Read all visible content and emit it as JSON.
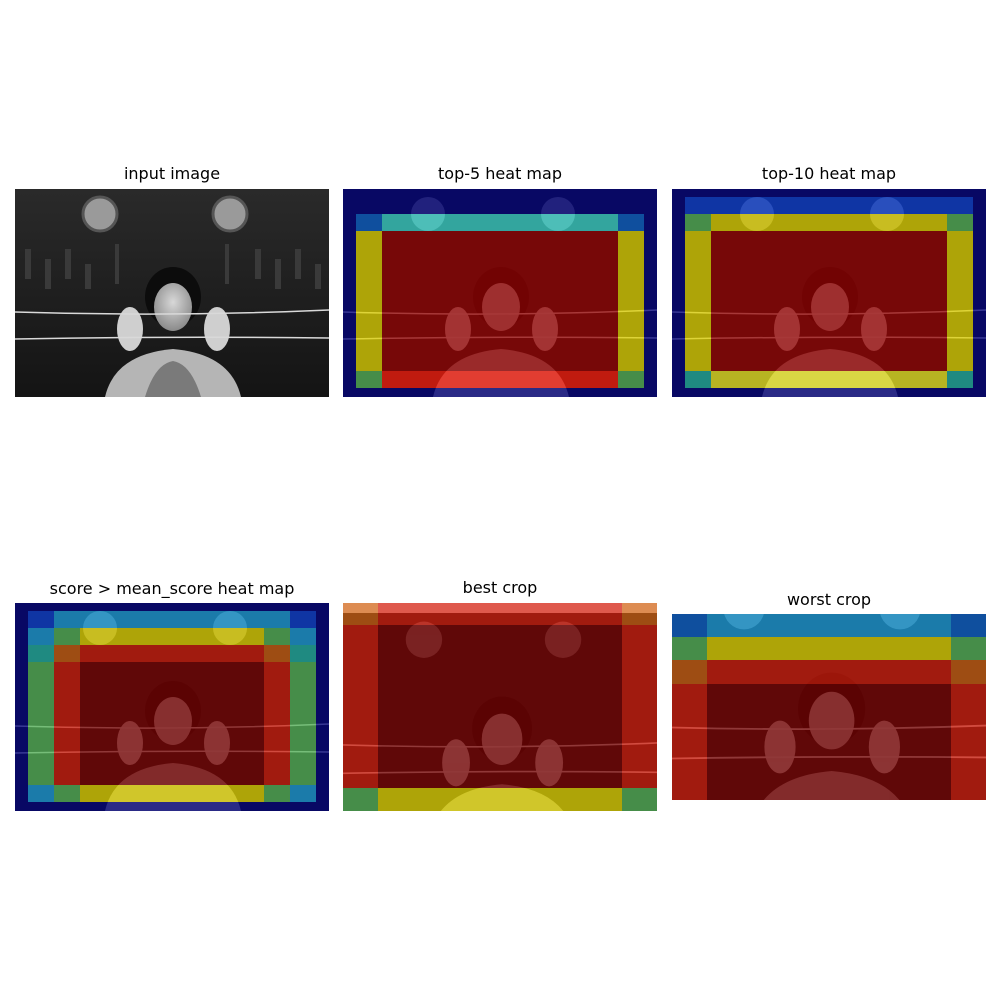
{
  "panels": [
    {
      "title": "input image",
      "kind": "photo"
    },
    {
      "title": "top-5 heat map",
      "kind": "heat"
    },
    {
      "title": "top-10 heat map",
      "kind": "heat"
    },
    {
      "title": "score > mean_score heat map",
      "kind": "heat"
    },
    {
      "title": "best crop",
      "kind": "crop"
    },
    {
      "title": "worst crop",
      "kind": "crop"
    }
  ],
  "colors": {
    "navy": "#00007f",
    "blue": "#0a3fd8",
    "cyan_blue": "#1aa0e0",
    "cyan": "#3cd9d0",
    "teal": "#20b4a8",
    "green": "#56b85a",
    "yellow": "#e6d800",
    "bright_yellow": "#f2ee24",
    "orange": "#d06010",
    "red": "#d41a0a",
    "dark_red": "#7a0000"
  }
}
